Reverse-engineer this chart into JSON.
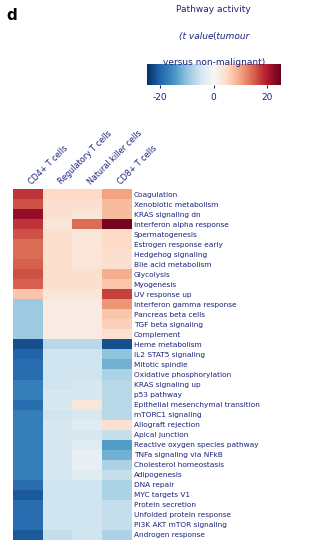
{
  "title_letter": "d",
  "columns": [
    "CD4+ T cells",
    "Regulatory T cells",
    "Natural killer cells",
    "CD8+ T cells"
  ],
  "rows": [
    "Coagulation",
    "Xenobiotic metabolism",
    "KRAS signaling dn",
    "Interferon alpha response",
    "Spermatogenesis",
    "Estrogen response early",
    "Hedgehog signaling",
    "Bile acid metabolism",
    "Glycolysis",
    "Myogenesis",
    "UV response up",
    "Interferon gamma response",
    "Pancreas beta cells",
    "TGF beta signaling",
    "Complement",
    "Heme metabolism",
    "IL2 STAT5 signaling",
    "Mitotic spindle",
    "Oxidative phosphorylation",
    "KRAS signaling up",
    "p53 pathway",
    "Epithelial mesenchymal transition",
    "mTORC1 signaling",
    "Allograft rejection",
    "Apical junction",
    "Reactive oxygen species pathway",
    "TNFa signaling via NFkB",
    "Cholesterol homeostasis",
    "Adipogenesis",
    "DNA repair",
    "MYC targets V1",
    "Protein secretion",
    "Unfolded protein response",
    "PI3K AKT mTOR signaling",
    "Androgen response"
  ],
  "values": [
    [
      18,
      5,
      5,
      10
    ],
    [
      16,
      4,
      4,
      8
    ],
    [
      22,
      4,
      3,
      8
    ],
    [
      18,
      3,
      14,
      24
    ],
    [
      16,
      4,
      3,
      5
    ],
    [
      14,
      4,
      3,
      5
    ],
    [
      14,
      4,
      3,
      4
    ],
    [
      15,
      4,
      3,
      4
    ],
    [
      16,
      4,
      4,
      9
    ],
    [
      15,
      4,
      4,
      7
    ],
    [
      7,
      3,
      3,
      17
    ],
    [
      -9,
      2,
      2,
      11
    ],
    [
      -9,
      2,
      2,
      7
    ],
    [
      -9,
      2,
      2,
      6
    ],
    [
      -9,
      2,
      2,
      4
    ],
    [
      -22,
      -7,
      -7,
      -22
    ],
    [
      -20,
      -5,
      -5,
      -10
    ],
    [
      -19,
      -5,
      -5,
      -12
    ],
    [
      -19,
      -5,
      -5,
      -8
    ],
    [
      -17,
      -5,
      -4,
      -7
    ],
    [
      -17,
      -4,
      -4,
      -7
    ],
    [
      -19,
      -4,
      3,
      -7
    ],
    [
      -17,
      -5,
      -4,
      -7
    ],
    [
      -17,
      -4,
      -3,
      4
    ],
    [
      -17,
      -4,
      -4,
      -6
    ],
    [
      -17,
      -4,
      -3,
      -14
    ],
    [
      -17,
      -4,
      -2,
      -12
    ],
    [
      -17,
      -4,
      -2,
      -8
    ],
    [
      -17,
      -4,
      -3,
      -6
    ],
    [
      -19,
      -5,
      -5,
      -8
    ],
    [
      -21,
      -5,
      -5,
      -8
    ],
    [
      -19,
      -5,
      -5,
      -6
    ],
    [
      -19,
      -5,
      -5,
      -6
    ],
    [
      -19,
      -5,
      -5,
      -6
    ],
    [
      -21,
      -6,
      -5,
      -8
    ]
  ],
  "vmin": -25,
  "vmax": 25,
  "colorbar_ticks": [
    -20,
    0,
    20
  ],
  "colorbar_ticklabels": [
    "-20",
    "0",
    "20"
  ],
  "colorbar_label_line1": "Pathway activity",
  "colorbar_label_line2": "(t value tumour",
  "colorbar_label_line3": "versus non-malignant)",
  "label_color": "#1a237e",
  "row_label_fontsize": 5.3,
  "col_label_fontsize": 5.8,
  "colorbar_fontsize": 6.5,
  "colorbar_tick_fontsize": 6.5
}
